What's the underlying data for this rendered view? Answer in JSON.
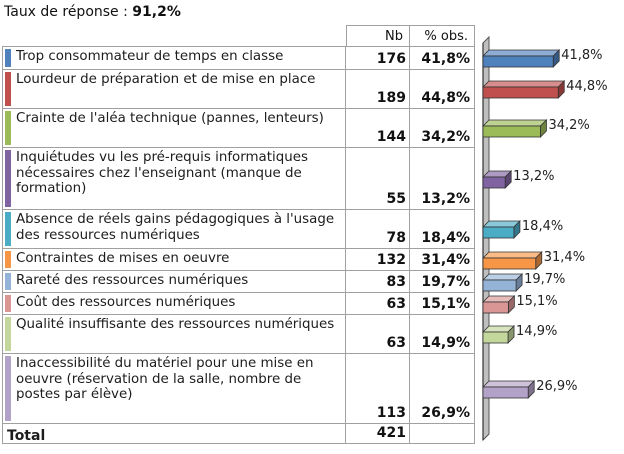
{
  "response_rate": {
    "label": "Taux de réponse :",
    "value": "91,2%"
  },
  "table": {
    "headers": {
      "nb": "Nb",
      "pct": "% obs."
    },
    "total": {
      "label": "Total",
      "nb": "421"
    }
  },
  "chart_data": {
    "type": "bar",
    "orientation": "horizontal",
    "categories": [
      "Trop consommateur de temps en classe",
      "Lourdeur de préparation et de mise en place",
      "Crainte de l'aléa technique (pannes, lenteurs)",
      "Inquiétudes vu les pré-requis informatiques nécessaires chez l'enseignant (manque de formation)",
      "Absence de réels gains pédagogiques à l'usage des  ressources numériques",
      "Contraintes de mises en oeuvre",
      "Rareté des ressources numériques",
      "Coût des ressources numériques",
      "Qualité insuffisante des ressources numériques",
      "Inaccessibilité du matériel pour une mise en oeuvre (réservation de la salle, nombre de postes par élève)"
    ],
    "nb": [
      "176",
      "189",
      "144",
      "55",
      "78",
      "132",
      "83",
      "63",
      "63",
      "113"
    ],
    "values": [
      41.8,
      44.8,
      34.2,
      13.2,
      18.4,
      31.4,
      19.7,
      15.1,
      14.9,
      26.9
    ],
    "value_labels": [
      "41,8%",
      "44,8%",
      "34,2%",
      "13,2%",
      "18,4%",
      "31,4%",
      "19,7%",
      "15,1%",
      "14,9%",
      "26,9%"
    ],
    "colors": [
      "#4f81bd",
      "#c0504d",
      "#9bbb59",
      "#8064a2",
      "#4bacc6",
      "#f79646",
      "#95b3d7",
      "#d99694",
      "#c3d69b",
      "#b3a2c7"
    ],
    "xlim": [
      0,
      50
    ],
    "grid": false,
    "legend": "none",
    "three_d": true
  }
}
